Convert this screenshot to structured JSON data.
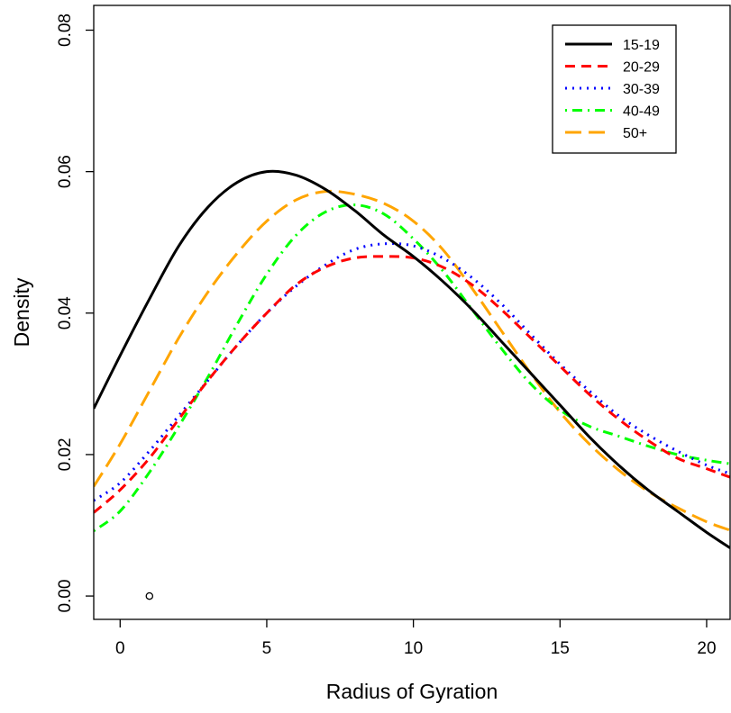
{
  "chart_data": {
    "type": "line",
    "title": "",
    "xlabel": "Radius of Gyration",
    "ylabel": "Density",
    "xlim": [
      -0.9,
      20.8
    ],
    "ylim": [
      -0.0033,
      0.0835
    ],
    "xticks": [
      0,
      5,
      10,
      15,
      20
    ],
    "yticks": [
      0.0,
      0.02,
      0.04,
      0.06,
      0.08
    ],
    "ytick_labels": [
      "0.00",
      "0.02",
      "0.04",
      "0.06",
      "0.08"
    ],
    "grid": false,
    "legend_position": "top-right",
    "series": [
      {
        "name": "15-19",
        "color": "#000000",
        "dash": "solid",
        "x": [
          -0.9,
          0,
          1,
          2,
          3,
          4,
          5,
          6,
          7,
          8,
          9,
          10,
          11,
          12,
          13,
          14,
          15,
          16,
          17,
          18,
          19,
          20,
          20.8
        ],
        "y": [
          0.0265,
          0.034,
          0.042,
          0.0495,
          0.055,
          0.0585,
          0.06,
          0.0595,
          0.0575,
          0.0545,
          0.051,
          0.048,
          0.0445,
          0.0405,
          0.036,
          0.0315,
          0.027,
          0.0225,
          0.0185,
          0.015,
          0.012,
          0.009,
          0.0068
        ]
      },
      {
        "name": "20-29",
        "color": "#ff0000",
        "dash": "dashed",
        "x": [
          -0.9,
          0,
          1,
          2,
          3,
          4,
          5,
          6,
          7,
          8,
          9,
          10,
          11,
          12,
          13,
          14,
          15,
          16,
          17,
          18,
          19,
          20,
          20.8
        ],
        "y": [
          0.0118,
          0.015,
          0.0195,
          0.025,
          0.0305,
          0.0355,
          0.04,
          0.044,
          0.0465,
          0.0478,
          0.048,
          0.0478,
          0.0465,
          0.044,
          0.0405,
          0.0365,
          0.0325,
          0.0285,
          0.025,
          0.022,
          0.0195,
          0.018,
          0.0168
        ]
      },
      {
        "name": "30-39",
        "color": "#0000ff",
        "dash": "dotted",
        "x": [
          -0.9,
          0,
          1,
          2,
          3,
          4,
          5,
          6,
          7,
          8,
          9,
          10,
          11,
          12,
          13,
          14,
          15,
          16,
          17,
          18,
          19,
          20,
          20.8
        ],
        "y": [
          0.0135,
          0.016,
          0.0205,
          0.0255,
          0.0305,
          0.0355,
          0.04,
          0.0438,
          0.0468,
          0.049,
          0.0498,
          0.0495,
          0.0478,
          0.045,
          0.0413,
          0.037,
          0.0328,
          0.029,
          0.0255,
          0.0228,
          0.0205,
          0.0185,
          0.0173
        ]
      },
      {
        "name": "40-49",
        "color": "#00ff00",
        "dash": "dotdash",
        "x": [
          -0.9,
          0,
          1,
          2,
          3,
          4,
          5,
          6,
          7,
          8,
          9,
          10,
          11,
          12,
          13,
          14,
          15,
          16,
          17,
          18,
          19,
          20,
          20.8
        ],
        "y": [
          0.0092,
          0.012,
          0.0175,
          0.024,
          0.031,
          0.0385,
          0.0455,
          0.051,
          0.0543,
          0.0553,
          0.054,
          0.0505,
          0.046,
          0.0405,
          0.035,
          0.03,
          0.0263,
          0.024,
          0.0226,
          0.0212,
          0.02,
          0.0192,
          0.0187
        ]
      },
      {
        "name": "50+",
        "color": "#ffa500",
        "dash": "longdash",
        "x": [
          -0.9,
          0,
          1,
          2,
          3,
          4,
          5,
          6,
          7,
          8,
          9,
          10,
          11,
          12,
          13,
          14,
          15,
          16,
          17,
          18,
          19,
          20,
          20.8
        ],
        "y": [
          0.0155,
          0.0215,
          0.029,
          0.0365,
          0.043,
          0.0485,
          0.053,
          0.056,
          0.0572,
          0.0568,
          0.0555,
          0.053,
          0.049,
          0.0435,
          0.0375,
          0.0315,
          0.026,
          0.0215,
          0.0178,
          0.0148,
          0.0125,
          0.0105,
          0.0093
        ]
      }
    ],
    "points": [
      {
        "x": 1,
        "y": 0.0
      }
    ]
  }
}
